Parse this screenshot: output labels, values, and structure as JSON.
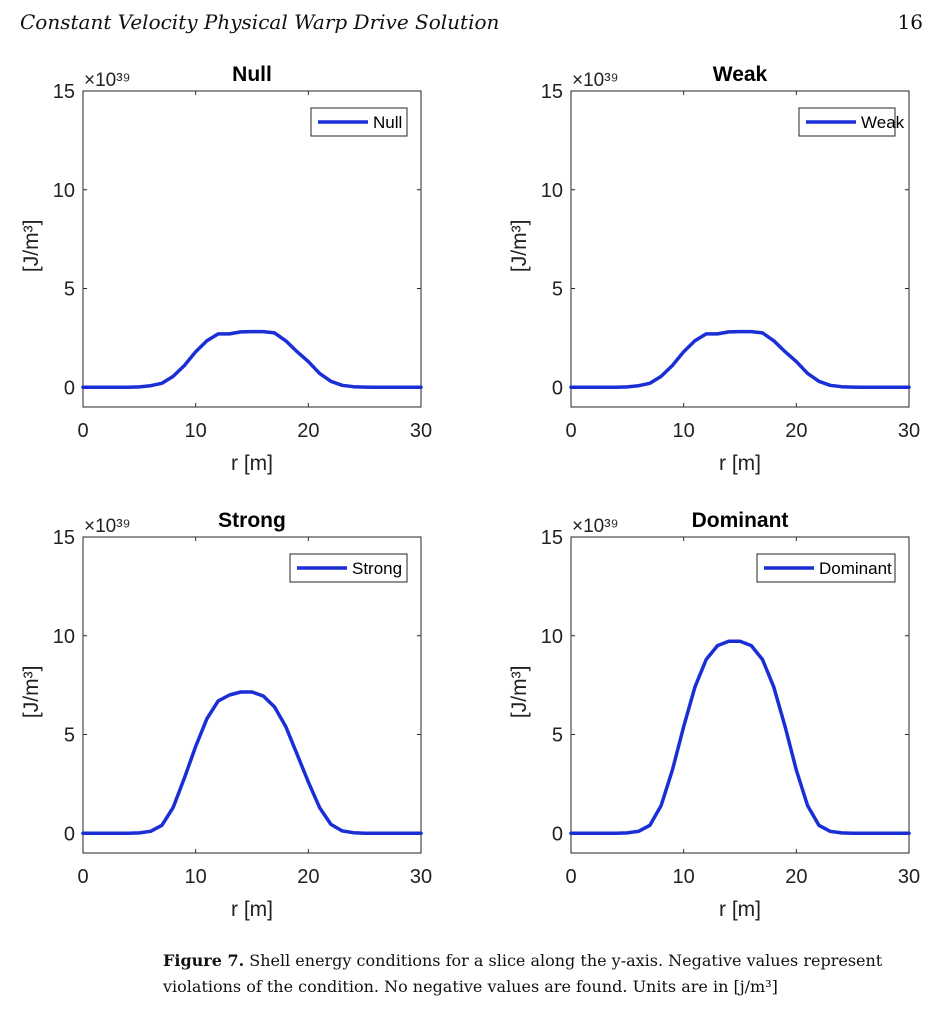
{
  "page": {
    "header_title": "Constant Velocity Physical Warp Drive Solution",
    "page_number": "16"
  },
  "caption": {
    "label": "Figure 7.",
    "text": "Shell energy conditions for a slice along the y-axis. Negative values represent violations of the condition. No negative values are found. Units are in [j/m³]"
  },
  "colors": {
    "line": "#1a2ed6",
    "axis": "#262626"
  },
  "chart_data": [
    {
      "type": "line",
      "title": "Null",
      "xlabel": "r [m]",
      "ylabel": "[J/m³]",
      "y_exponent": "×10³⁹",
      "xlim": [
        0,
        30
      ],
      "ylim": [
        -1,
        15
      ],
      "xticks": [
        0,
        10,
        20,
        30
      ],
      "yticks": [
        0,
        5,
        10,
        15
      ],
      "legend": "top-right",
      "series": [
        {
          "name": "Null",
          "x": [
            0,
            4,
            5,
            6,
            7,
            8,
            9,
            10,
            11,
            12,
            13,
            14,
            15,
            16,
            17,
            18,
            19,
            20,
            21,
            22,
            23,
            24,
            25,
            26,
            30
          ],
          "y": [
            0,
            0,
            0.02,
            0.08,
            0.2,
            0.55,
            1.1,
            1.8,
            2.35,
            2.7,
            2.7,
            2.8,
            2.82,
            2.82,
            2.75,
            2.35,
            1.8,
            1.3,
            0.7,
            0.3,
            0.1,
            0.03,
            0.01,
            0,
            0
          ]
        }
      ]
    },
    {
      "type": "line",
      "title": "Weak",
      "xlabel": "r [m]",
      "ylabel": "[J/m³]",
      "y_exponent": "×10³⁹",
      "xlim": [
        0,
        30
      ],
      "ylim": [
        -1,
        15
      ],
      "xticks": [
        0,
        10,
        20,
        30
      ],
      "yticks": [
        0,
        5,
        10,
        15
      ],
      "legend": "top-right",
      "series": [
        {
          "name": "Weak",
          "x": [
            0,
            4,
            5,
            6,
            7,
            8,
            9,
            10,
            11,
            12,
            13,
            14,
            15,
            16,
            17,
            18,
            19,
            20,
            21,
            22,
            23,
            24,
            25,
            26,
            30
          ],
          "y": [
            0,
            0,
            0.02,
            0.08,
            0.2,
            0.55,
            1.1,
            1.8,
            2.35,
            2.7,
            2.7,
            2.8,
            2.82,
            2.82,
            2.75,
            2.35,
            1.8,
            1.3,
            0.7,
            0.3,
            0.1,
            0.03,
            0.01,
            0,
            0
          ]
        }
      ]
    },
    {
      "type": "line",
      "title": "Strong",
      "xlabel": "r [m]",
      "ylabel": "[J/m³]",
      "y_exponent": "×10³⁹",
      "xlim": [
        0,
        30
      ],
      "ylim": [
        -1,
        15
      ],
      "xticks": [
        0,
        10,
        20,
        30
      ],
      "yticks": [
        0,
        5,
        10,
        15
      ],
      "legend": "top-right",
      "series": [
        {
          "name": "Strong",
          "x": [
            0,
            4,
            5,
            6,
            7,
            8,
            9,
            10,
            11,
            12,
            13,
            14,
            15,
            16,
            17,
            18,
            19,
            20,
            21,
            22,
            23,
            24,
            25,
            30
          ],
          "y": [
            0,
            0,
            0.02,
            0.1,
            0.4,
            1.3,
            2.8,
            4.4,
            5.8,
            6.7,
            7.0,
            7.15,
            7.15,
            6.95,
            6.4,
            5.4,
            4.0,
            2.6,
            1.3,
            0.45,
            0.12,
            0.03,
            0,
            0
          ]
        }
      ]
    },
    {
      "type": "line",
      "title": "Dominant",
      "xlabel": "r [m]",
      "ylabel": "[J/m³]",
      "y_exponent": "×10³⁹",
      "xlim": [
        0,
        30
      ],
      "ylim": [
        -1,
        15
      ],
      "xticks": [
        0,
        10,
        20,
        30
      ],
      "yticks": [
        0,
        5,
        10,
        15
      ],
      "legend": "top-right",
      "series": [
        {
          "name": "Dominant",
          "x": [
            0,
            4,
            5,
            6,
            7,
            8,
            9,
            10,
            11,
            12,
            13,
            14,
            15,
            16,
            17,
            18,
            19,
            20,
            21,
            22,
            23,
            24,
            25,
            30
          ],
          "y": [
            0,
            0,
            0.02,
            0.1,
            0.4,
            1.4,
            3.2,
            5.4,
            7.4,
            8.8,
            9.5,
            9.72,
            9.72,
            9.5,
            8.8,
            7.4,
            5.4,
            3.2,
            1.4,
            0.4,
            0.1,
            0.02,
            0,
            0
          ]
        }
      ]
    }
  ]
}
